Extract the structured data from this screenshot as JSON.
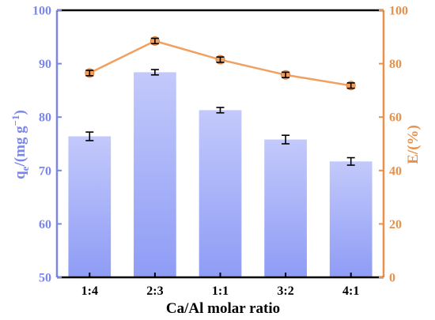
{
  "chart_data": {
    "type": "bar",
    "categories": [
      "1:4",
      "2:3",
      "1:1",
      "3:2",
      "4:1"
    ],
    "xlabel": "Ca/Al molar ratio",
    "series": [
      {
        "type": "bar",
        "axis": "left",
        "values": [
          76.4,
          88.4,
          81.3,
          75.8,
          71.7
        ],
        "errors": [
          0.8,
          0.5,
          0.5,
          0.8,
          0.7
        ],
        "color": "#8e9cf5"
      },
      {
        "type": "line",
        "axis": "right",
        "values": [
          76.5,
          88.5,
          81.5,
          75.8,
          71.8
        ],
        "errors": [
          1.0,
          1.0,
          1.0,
          1.0,
          1.0
        ],
        "color": "#f0a060"
      }
    ],
    "ylabel_left": {
      "main": "q",
      "sub": "e",
      "rest": "/(mg g",
      "sup": "−1",
      "close": ")"
    },
    "ylabel_right": "E/(%)",
    "ylim_left": [
      50,
      100
    ],
    "yticks_left": [
      "50",
      "60",
      "70",
      "80",
      "90",
      "100"
    ],
    "ylim_right": [
      0,
      100
    ],
    "yticks_right": [
      "0",
      "20",
      "40",
      "60",
      "80",
      "100"
    ],
    "grid": false,
    "left_axis_color": "#7b86e6",
    "right_axis_color": "#e8914a"
  }
}
